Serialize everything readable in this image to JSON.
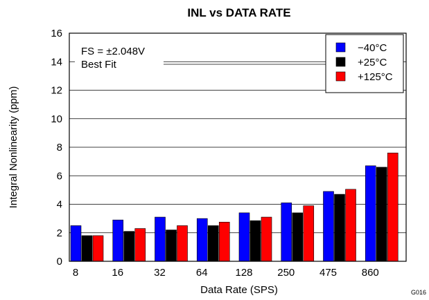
{
  "chart_data": {
    "type": "bar",
    "title": "INL vs DATA RATE",
    "xlabel": "Data Rate (SPS)",
    "ylabel": "Integral Nonlinearity (ppm)",
    "ylim": [
      0,
      16
    ],
    "yticks": [
      0,
      2,
      4,
      6,
      8,
      10,
      12,
      14,
      16
    ],
    "grid": true,
    "legend_position": "top-right",
    "categories": [
      "8",
      "16",
      "32",
      "64",
      "128",
      "250",
      "475",
      "860"
    ],
    "series": [
      {
        "name": "−40°C",
        "color": "#0000ff",
        "values": [
          2.5,
          2.9,
          3.1,
          3.0,
          3.4,
          4.1,
          4.9,
          6.7
        ]
      },
      {
        "name": "+25°C",
        "color": "#000000",
        "values": [
          1.8,
          2.1,
          2.2,
          2.5,
          2.85,
          3.4,
          4.7,
          6.6
        ]
      },
      {
        "name": "+125°C",
        "color": "#ff0000",
        "values": [
          1.8,
          2.3,
          2.5,
          2.75,
          3.1,
          3.9,
          5.05,
          7.6
        ]
      }
    ],
    "annotations": [
      "FS = ±2.048V",
      "Best Fit"
    ],
    "figure_code": "G016"
  }
}
